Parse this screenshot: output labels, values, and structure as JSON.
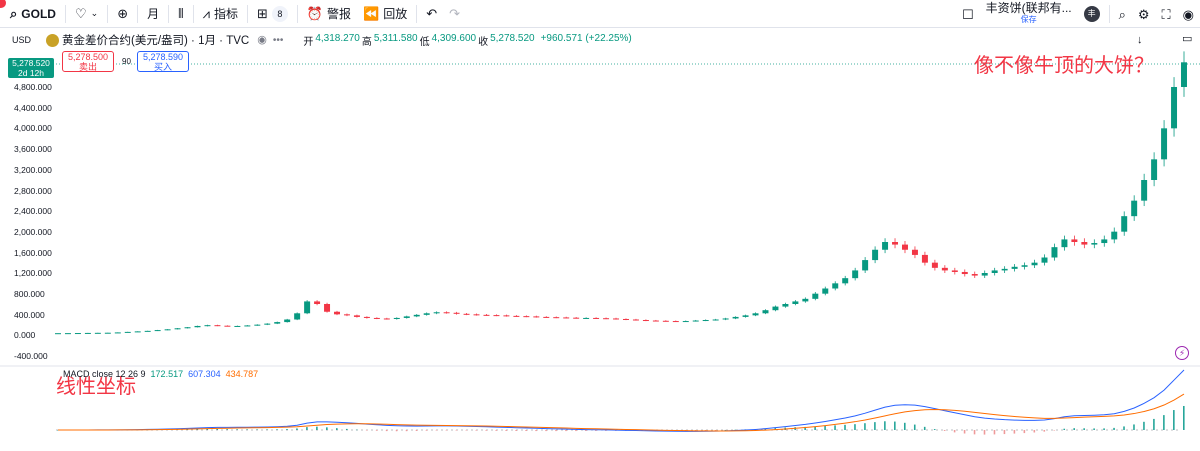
{
  "toolbar": {
    "symbol": "GOLD",
    "interval": "月",
    "indicators": "指标",
    "layouts_badge": "8",
    "alert": "警报",
    "replay": "回放"
  },
  "header_right": {
    "layout_name": "丰资饼(联邦有...",
    "save_label": "保存",
    "avatar_initial": "丰"
  },
  "legend": {
    "currency": "USD",
    "symbol_title": "黄金差价合约(美元/盎司) · 1月 · TVC",
    "open_label": "开",
    "open": "4,318.270",
    "high_label": "高",
    "high": "5,311.580",
    "low_label": "低",
    "low": "4,309.600",
    "close_label": "收",
    "close": "5,278.520",
    "change": "+960.571 (+22.25%)"
  },
  "trade": {
    "sell_price": "5,278.500",
    "sell_label": "卖出",
    "spread": "90",
    "buy_price": "5,278.590",
    "buy_label": "买入"
  },
  "price_tag": {
    "price": "5,278.520",
    "countdown": "2d 12h"
  },
  "price_axis": [
    "4,800.000",
    "4,400.000",
    "4,000.000",
    "3,600.000",
    "3,200.000",
    "2,800.000",
    "2,400.000",
    "2,000.000",
    "1,600.000",
    "1,200.000",
    "800.000",
    "400.000",
    "0.000",
    "-400.000"
  ],
  "annotations": {
    "top": "像不像牛顶的大饼？",
    "macd": "线性坐标"
  },
  "macd": {
    "label": "MACD close 12 26 9",
    "histogram": "172.517",
    "macd_line": "607.304",
    "signal": "434.787"
  },
  "colors": {
    "up": "#089981",
    "down": "#f23645",
    "macd": "#2962ff",
    "signal": "#ff6d00",
    "annotation": "#f23645"
  },
  "chart_data": {
    "type": "candlestick",
    "y_range": [
      -400,
      5300
    ],
    "close": [
      35,
      36,
      38,
      40,
      42,
      44,
      50,
      60,
      70,
      80,
      95,
      110,
      130,
      150,
      175,
      190,
      180,
      170,
      175,
      185,
      200,
      220,
      250,
      300,
      420,
      650,
      600,
      450,
      400,
      380,
      350,
      330,
      320,
      310,
      330,
      360,
      390,
      420,
      440,
      430,
      410,
      400,
      390,
      385,
      380,
      370,
      365,
      360,
      350,
      345,
      340,
      335,
      330,
      330,
      325,
      320,
      310,
      300,
      290,
      280,
      275,
      270,
      265,
      270,
      280,
      290,
      300,
      320,
      350,
      380,
      420,
      480,
      550,
      600,
      650,
      700,
      800,
      900,
      1000,
      1100,
      1250,
      1450,
      1650,
      1800,
      1750,
      1650,
      1550,
      1400,
      1300,
      1250,
      1220,
      1180,
      1150,
      1200,
      1250,
      1280,
      1320,
      1350,
      1400,
      1500,
      1700,
      1850,
      1800,
      1750,
      1780,
      1850,
      2000,
      2300,
      2600,
      3000,
      3400,
      4000,
      4800,
      5278
    ]
  }
}
